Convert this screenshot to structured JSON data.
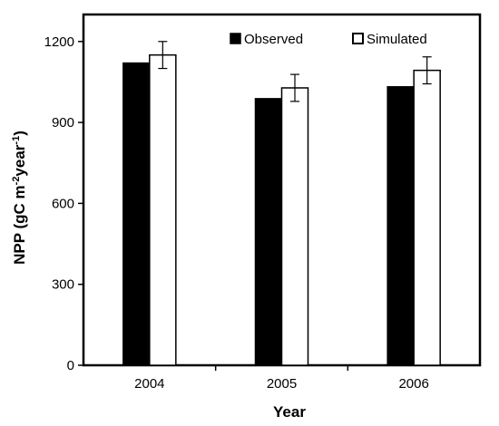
{
  "chart_data": {
    "type": "bar",
    "categories": [
      "2004",
      "2005",
      "2006"
    ],
    "series": [
      {
        "name": "Observed",
        "values": [
          1120,
          988,
          1032
        ],
        "color": "#000000"
      },
      {
        "name": "Simulated",
        "values": [
          1150,
          1028,
          1093
        ],
        "errors": [
          50,
          50,
          50
        ],
        "color": "#ffffff"
      }
    ],
    "xlabel": "Year",
    "ylabel_main": "NPP (gC m",
    "ylabel_sup1": "-2",
    "ylabel_mid": "year",
    "ylabel_sup2": "-1",
    "ylabel_end": ")",
    "ylim": [
      0,
      1300
    ],
    "yticks": [
      0,
      300,
      600,
      900,
      1200
    ],
    "grid": false,
    "legend_position": "top-right"
  }
}
